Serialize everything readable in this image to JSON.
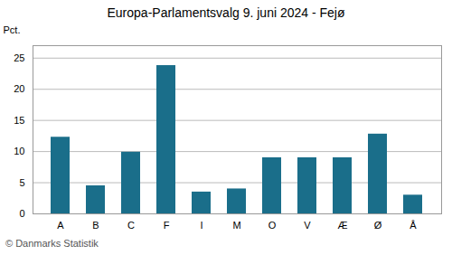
{
  "chart_data": {
    "type": "bar",
    "title": "Europa-Parlamentsvalg 9. juni 2024 - Fejø",
    "caption": "© Danmarks Statistik",
    "ylabel": "Pct.",
    "categories": [
      "A",
      "B",
      "C",
      "F",
      "I",
      "M",
      "O",
      "V",
      "Æ",
      "Ø",
      "Å"
    ],
    "values": [
      12.3,
      4.5,
      9.9,
      23.8,
      3.5,
      4.0,
      9.0,
      9.0,
      9.0,
      12.8,
      3.0
    ],
    "color": "#1a6e8a",
    "ylim": [
      0,
      27
    ],
    "yticks": [
      0,
      5,
      10,
      15,
      20,
      25
    ],
    "grid": true
  }
}
